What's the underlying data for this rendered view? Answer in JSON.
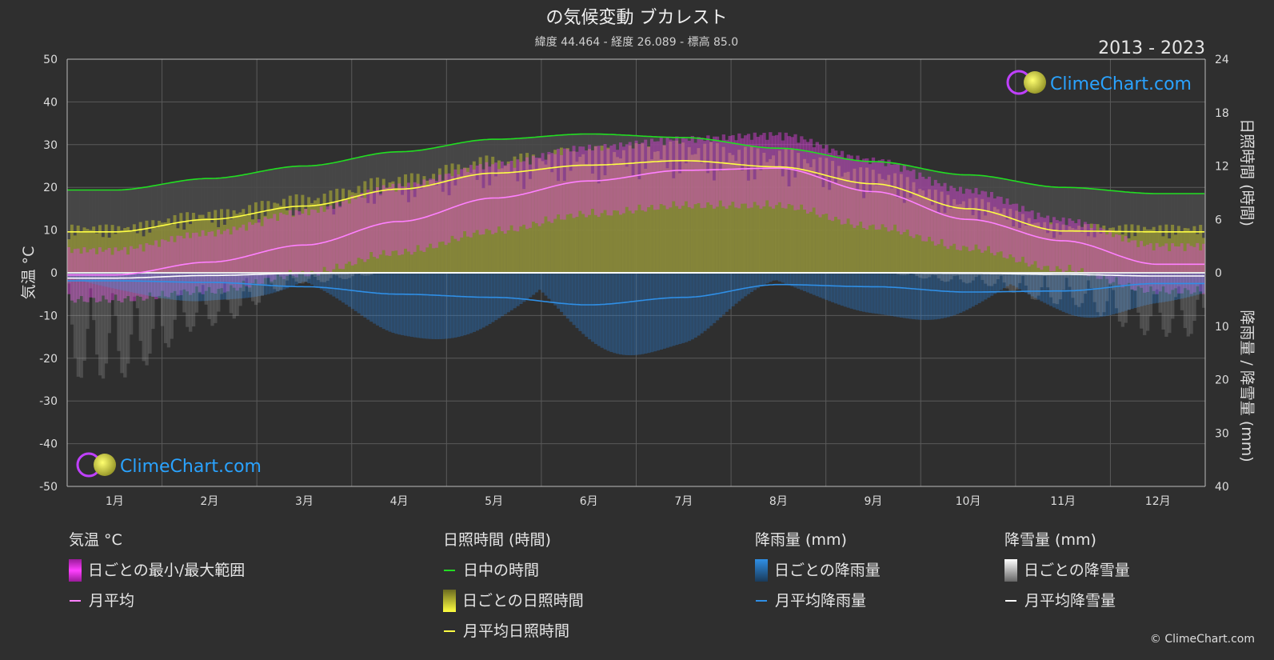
{
  "header": {
    "title": "の気候変動 ブカレスト",
    "subtitle": "緯度 44.464 - 経度 26.089 - 標高 85.0",
    "year_range": "2013 - 2023"
  },
  "brand": {
    "name": "ClimeChart.com",
    "copyright": "© ClimeChart.com"
  },
  "colors": {
    "background": "#2f2f2f",
    "temp_range": "#e040e0",
    "temp_avg": "#ff80ff",
    "daylight": "#22dd22",
    "sunshine_bar": "#b8b830",
    "sunshine_avg": "#ffff44",
    "rain_bar": "#2a7fd4",
    "rain_avg": "#2f8fe6",
    "snow_bar": "#bbbbbb",
    "snow_avg": "#ffffff",
    "brand": "#2aa3ff"
  },
  "chart_data": {
    "type": "line",
    "months": [
      "1月",
      "2月",
      "3月",
      "4月",
      "5月",
      "6月",
      "7月",
      "8月",
      "9月",
      "10月",
      "11月",
      "12月"
    ],
    "left_axis": {
      "label": "気温 °C",
      "range": [
        -50,
        50
      ],
      "ticks": [
        "50",
        "40",
        "30",
        "20",
        "10",
        "0",
        "-10",
        "-20",
        "-30",
        "-40",
        "-50"
      ]
    },
    "right_axis_top": {
      "label": "日照時間 (時間)",
      "range": [
        0,
        24
      ],
      "ticks": [
        "24",
        "18",
        "12",
        "6",
        "0"
      ]
    },
    "right_axis_bottom": {
      "label": "降雨量 / 降雪量 (mm)",
      "range": [
        0,
        40
      ],
      "ticks": [
        "10",
        "20",
        "30",
        "40"
      ]
    },
    "series": [
      {
        "name": "日中の時間",
        "axis": "sunshine",
        "values": [
          9.3,
          10.6,
          12.0,
          13.6,
          15.0,
          15.6,
          15.2,
          14.0,
          12.5,
          11.0,
          9.6,
          8.9
        ]
      },
      {
        "name": "月平均日照時間",
        "axis": "sunshine",
        "values": [
          4.6,
          6.0,
          7.5,
          9.4,
          11.2,
          12.1,
          12.6,
          11.9,
          10.0,
          7.2,
          4.7,
          4.6
        ]
      },
      {
        "name": "月平均",
        "axis": "temperature",
        "values": [
          -0.5,
          2.5,
          6.5,
          12.0,
          17.5,
          21.5,
          24.0,
          24.5,
          19.0,
          12.5,
          7.5,
          2.0
        ]
      },
      {
        "name": "月平均降雨量",
        "axis": "precipitation",
        "values": [
          1.5,
          1.8,
          2.6,
          4.0,
          4.6,
          6.0,
          4.6,
          2.2,
          2.6,
          3.6,
          3.4,
          2.0
        ]
      },
      {
        "name": "月平均降雪量",
        "axis": "precipitation",
        "values": [
          1.0,
          0.5,
          0.1,
          0,
          0,
          0,
          0,
          0,
          0,
          0.1,
          0.3,
          0.6
        ]
      }
    ],
    "temp_range_monthly": {
      "min": [
        -5,
        -3,
        1,
        6,
        11,
        15,
        17,
        17,
        12,
        7,
        2,
        -3
      ],
      "max": [
        4,
        8,
        13,
        19,
        24,
        28,
        30,
        31,
        25,
        18,
        11,
        5
      ]
    },
    "grid": true
  },
  "legend": {
    "temperature": {
      "heading": "気温 °C",
      "range_label": "日ごとの最小/最大範囲",
      "avg_label": "月平均"
    },
    "sunshine": {
      "heading": "日照時間 (時間)",
      "daylight_label": "日中の時間",
      "daily_label": "日ごとの日照時間",
      "avg_label": "月平均日照時間"
    },
    "rain": {
      "heading": "降雨量 (mm)",
      "daily_label": "日ごとの降雨量",
      "avg_label": "月平均降雨量"
    },
    "snow": {
      "heading": "降雪量 (mm)",
      "daily_label": "日ごとの降雪量",
      "avg_label": "月平均降雪量"
    }
  }
}
